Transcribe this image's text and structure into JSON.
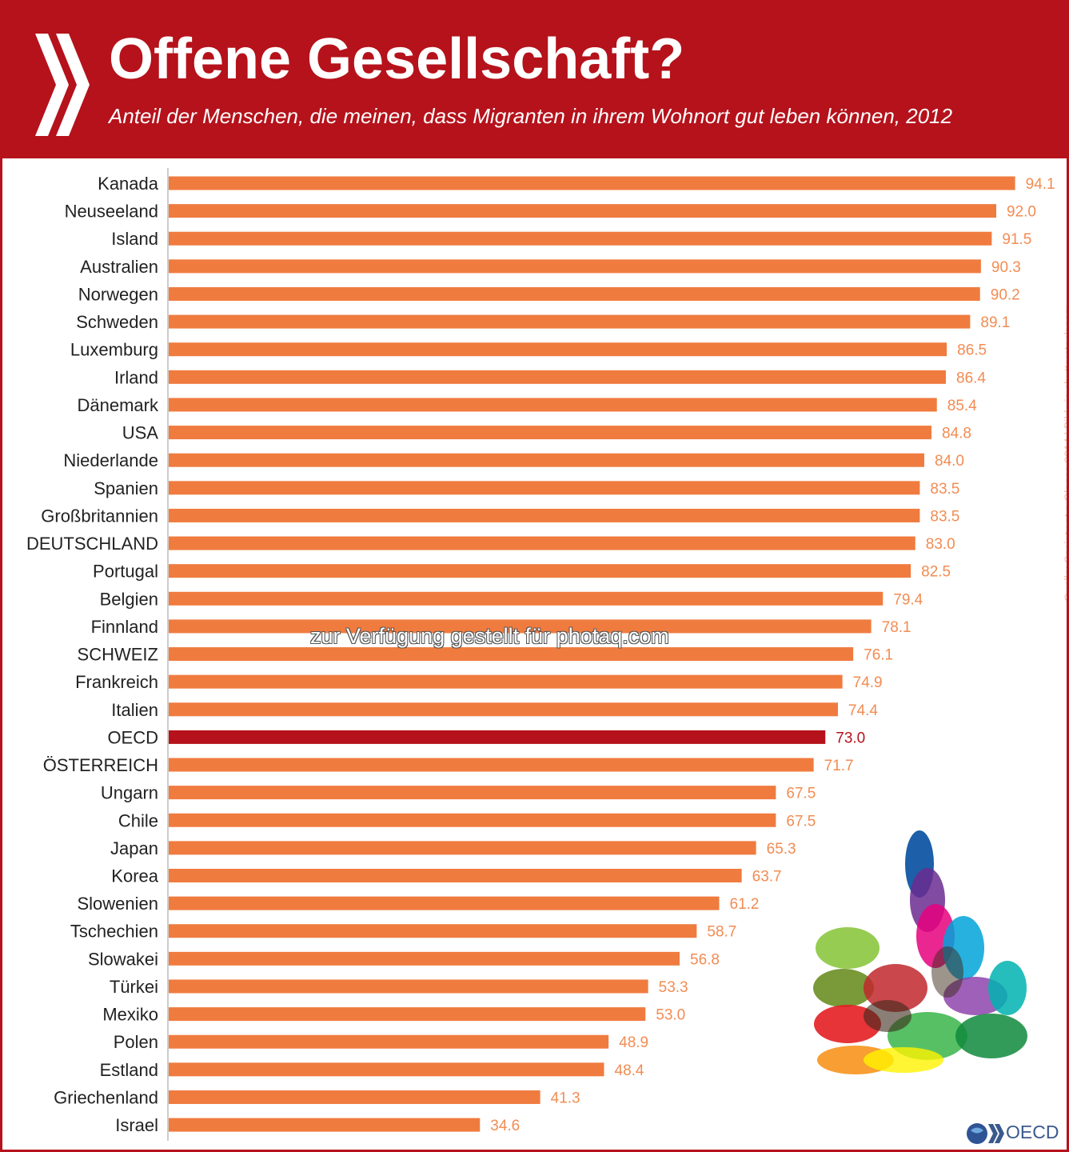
{
  "header": {
    "title": "Offene Gesellschaft?",
    "subtitle": "Anteil der Menschen, die meinen, dass Migranten in ihrem Wohnort gut leben können, 2012"
  },
  "source_note": "Quelle: Society at a Glance 2014 | Bild via shutterstock.com",
  "watermark": "zur Verfügung gestellt für photaq.com",
  "logo": {
    "text": "OECD",
    "icon": "oecd-globe-icon"
  },
  "colors": {
    "header_bg": "#b5121b",
    "bar": "#f07b3f",
    "highlight_bar": "#b5121b",
    "value_text": "#f28c53"
  },
  "chart_data": {
    "type": "bar",
    "orientation": "horizontal",
    "title": "Offene Gesellschaft?",
    "subtitle": "Anteil der Menschen, die meinen, dass Migranten in ihrem Wohnort gut leben können, 2012",
    "highlight": "OECD",
    "xlim": [
      0,
      100
    ],
    "grid": false,
    "categories": [
      "Kanada",
      "Neuseeland",
      "Island",
      "Australien",
      "Norwegen",
      "Schweden",
      "Luxemburg",
      "Irland",
      "Dänemark",
      "USA",
      "Niederlande",
      "Spanien",
      "Großbritannien",
      "DEUTSCHLAND",
      "Portugal",
      "Belgien",
      "Finnland",
      "SCHWEIZ",
      "Frankreich",
      "Italien",
      "OECD",
      "ÖSTERREICH",
      "Ungarn",
      "Chile",
      "Japan",
      "Korea",
      "Slowenien",
      "Tschechien",
      "Slowakei",
      "Türkei",
      "Mexiko",
      "Polen",
      "Estland",
      "Griechenland",
      "Israel"
    ],
    "values": [
      94.1,
      92.0,
      91.5,
      90.3,
      90.2,
      89.1,
      86.5,
      86.4,
      85.4,
      84.8,
      84.0,
      83.5,
      83.5,
      83.0,
      82.5,
      79.4,
      78.1,
      76.1,
      74.9,
      74.4,
      73.0,
      71.7,
      67.5,
      67.5,
      65.3,
      63.7,
      61.2,
      58.7,
      56.8,
      53.3,
      53.0,
      48.9,
      48.4,
      41.3,
      34.6
    ],
    "value_labels": [
      "94.1",
      "92.0",
      "91.5",
      "90.3",
      "90.2",
      "89.1",
      "86.5",
      "86.4",
      "85.4",
      "84.8",
      "84.0",
      "83.5",
      "83.5",
      "83.0",
      "82.5",
      "79.4",
      "78.1",
      "76.1",
      "74.9",
      "74.4",
      "73.0",
      "71.7",
      "67.5",
      "67.5",
      "65.3",
      "63.7",
      "61.2",
      "58.7",
      "56.8",
      "53.3",
      "53.0",
      "48.9",
      "48.4",
      "41.3",
      "34.6"
    ]
  }
}
